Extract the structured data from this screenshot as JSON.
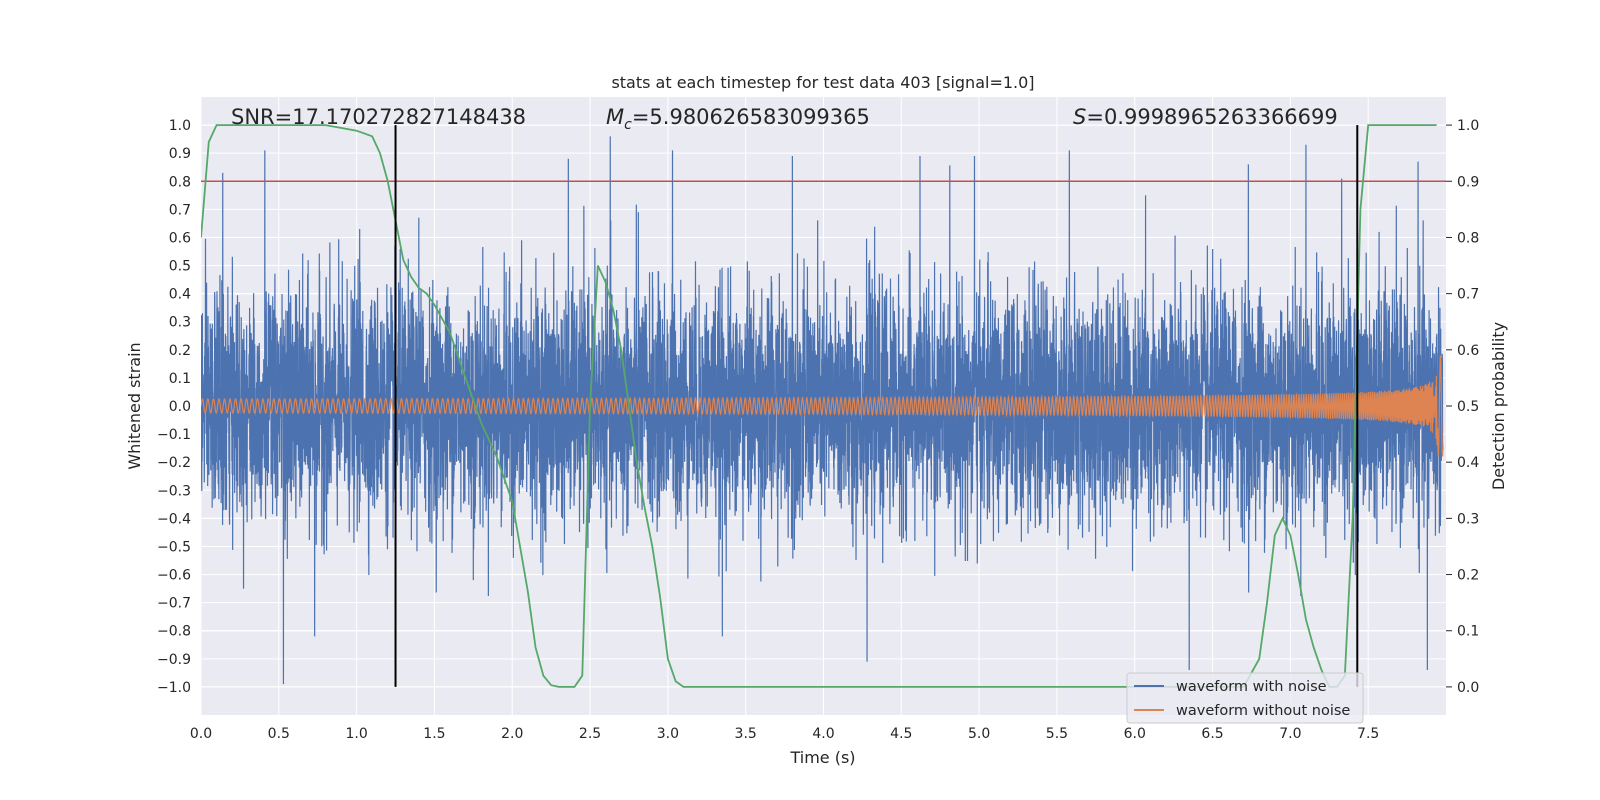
{
  "chart_data": {
    "type": "line",
    "title": "stats at each timestep for test data 403 [signal=1.0]",
    "xlabel": "Time (s)",
    "ylabel": "Whitened strain",
    "ylabel_right": "Detection probability",
    "xlim": [
      0.0,
      8.0
    ],
    "ylim": [
      -1.1,
      1.1
    ],
    "ylim_right": [
      -0.05,
      1.05
    ],
    "x_ticks": [
      0.0,
      0.5,
      1.0,
      1.5,
      2.0,
      2.5,
      3.0,
      3.5,
      4.0,
      4.5,
      5.0,
      5.5,
      6.0,
      6.5,
      7.0,
      7.5
    ],
    "x_tick_labels": [
      "0.0",
      "0.5",
      "1.0",
      "1.5",
      "2.0",
      "2.5",
      "3.0",
      "3.5",
      "4.0",
      "4.5",
      "5.0",
      "5.5",
      "6.0",
      "6.5",
      "7.0",
      "7.5"
    ],
    "y_ticks": [
      -1.0,
      -0.9,
      -0.8,
      -0.7,
      -0.6,
      -0.5,
      -0.4,
      -0.3,
      -0.2,
      -0.1,
      0.0,
      0.1,
      0.2,
      0.3,
      0.4,
      0.5,
      0.6,
      0.7,
      0.8,
      0.9,
      1.0
    ],
    "y_tick_labels": [
      "−1.0",
      "−0.9",
      "−0.8",
      "−0.7",
      "−0.6",
      "−0.5",
      "−0.4",
      "−0.3",
      "−0.2",
      "−0.1",
      "0.0",
      "0.1",
      "0.2",
      "0.3",
      "0.4",
      "0.5",
      "0.6",
      "0.7",
      "0.8",
      "0.9",
      "1.0"
    ],
    "y_right_ticks": [
      0.0,
      0.1,
      0.2,
      0.3,
      0.4,
      0.5,
      0.6,
      0.7,
      0.8,
      0.9,
      1.0
    ],
    "y_right_tick_labels": [
      "0.0",
      "0.1",
      "0.2",
      "0.3",
      "0.4",
      "0.5",
      "0.6",
      "0.7",
      "0.8",
      "0.9",
      "1.0"
    ],
    "annotations": {
      "snr": "SNR=17.170272827148438",
      "mc_symbol": "M",
      "mc_subscript": "c",
      "mc_value": "=5.980626583099365",
      "s_symbol": "S",
      "s_value": "=0.9998965263366699"
    },
    "threshold": {
      "y_right": 0.9,
      "color": "#c44e52"
    },
    "vertical_lines": [
      1.25,
      7.43
    ],
    "grid": true,
    "legend_position": "bottom-right",
    "background": "#eaeaf2",
    "series": [
      {
        "name": "waveform with noise",
        "color": "#4c72b0",
        "axis": "left",
        "samples": 8000,
        "x_range": [
          0.0,
          7.98
        ],
        "envelope_sigma": 0.2,
        "spikes": [
          [
            0.14,
            0.83
          ],
          [
            0.41,
            0.91
          ],
          [
            0.53,
            -0.99
          ],
          [
            0.73,
            -0.82
          ],
          [
            1.02,
            0.63
          ],
          [
            1.27,
            0.44
          ],
          [
            1.4,
            0.67
          ],
          [
            1.75,
            -0.62
          ],
          [
            2.06,
            0.59
          ],
          [
            2.36,
            0.88
          ],
          [
            2.63,
            0.96
          ],
          [
            2.81,
            0.69
          ],
          [
            3.03,
            0.91
          ],
          [
            3.35,
            -0.82
          ],
          [
            3.8,
            0.89
          ],
          [
            4.28,
            -0.91
          ],
          [
            4.62,
            0.89
          ],
          [
            4.97,
            0.89
          ],
          [
            5.58,
            0.91
          ],
          [
            6.07,
            0.75
          ],
          [
            6.35,
            -0.94
          ],
          [
            6.73,
            0.86
          ],
          [
            7.1,
            0.93
          ],
          [
            7.33,
            0.81
          ],
          [
            7.57,
            0.62
          ],
          [
            7.82,
            0.87
          ],
          [
            7.88,
            -0.94
          ]
        ]
      },
      {
        "name": "waveform without noise",
        "color": "#dd8452",
        "axis": "left",
        "samples": 4000,
        "x_range": [
          0.0,
          7.98
        ],
        "chirp_time": 7.95,
        "amplitude_start": 0.025,
        "amplitude_end": 0.45,
        "frequency_start": 28
      },
      {
        "name": "detection probability",
        "color": "#55a868",
        "axis": "right",
        "x": [
          0.0,
          0.05,
          0.1,
          0.3,
          0.6,
          0.8,
          1.0,
          1.1,
          1.15,
          1.2,
          1.25,
          1.3,
          1.35,
          1.4,
          1.45,
          1.5,
          1.6,
          1.7,
          1.8,
          1.9,
          2.0,
          2.1,
          2.15,
          2.2,
          2.25,
          2.3,
          2.35,
          2.4,
          2.45,
          2.5,
          2.55,
          2.6,
          2.65,
          2.7,
          2.75,
          2.8,
          2.85,
          2.9,
          2.95,
          3.0,
          3.05,
          3.1,
          3.5,
          4.0,
          4.5,
          5.0,
          5.5,
          6.0,
          6.5,
          6.7,
          6.8,
          6.85,
          6.9,
          6.95,
          7.0,
          7.05,
          7.1,
          7.15,
          7.2,
          7.25,
          7.3,
          7.35,
          7.4,
          7.45,
          7.5,
          7.55,
          7.94
        ],
        "y": [
          0.8,
          0.97,
          1.0,
          1.0,
          1.0,
          1.0,
          0.99,
          0.98,
          0.95,
          0.9,
          0.83,
          0.76,
          0.73,
          0.71,
          0.7,
          0.68,
          0.63,
          0.55,
          0.47,
          0.41,
          0.33,
          0.17,
          0.07,
          0.02,
          0.003,
          0.0,
          0.0,
          0.0,
          0.02,
          0.5,
          0.75,
          0.72,
          0.67,
          0.6,
          0.5,
          0.4,
          0.32,
          0.25,
          0.16,
          0.05,
          0.01,
          0.0,
          0.0,
          0.0,
          0.0,
          0.0,
          0.0,
          0.0,
          0.0,
          0.0,
          0.05,
          0.15,
          0.27,
          0.3,
          0.27,
          0.2,
          0.12,
          0.07,
          0.03,
          0.0,
          0.0,
          0.02,
          0.3,
          0.85,
          1.0,
          1.0,
          1.0
        ]
      }
    ]
  }
}
